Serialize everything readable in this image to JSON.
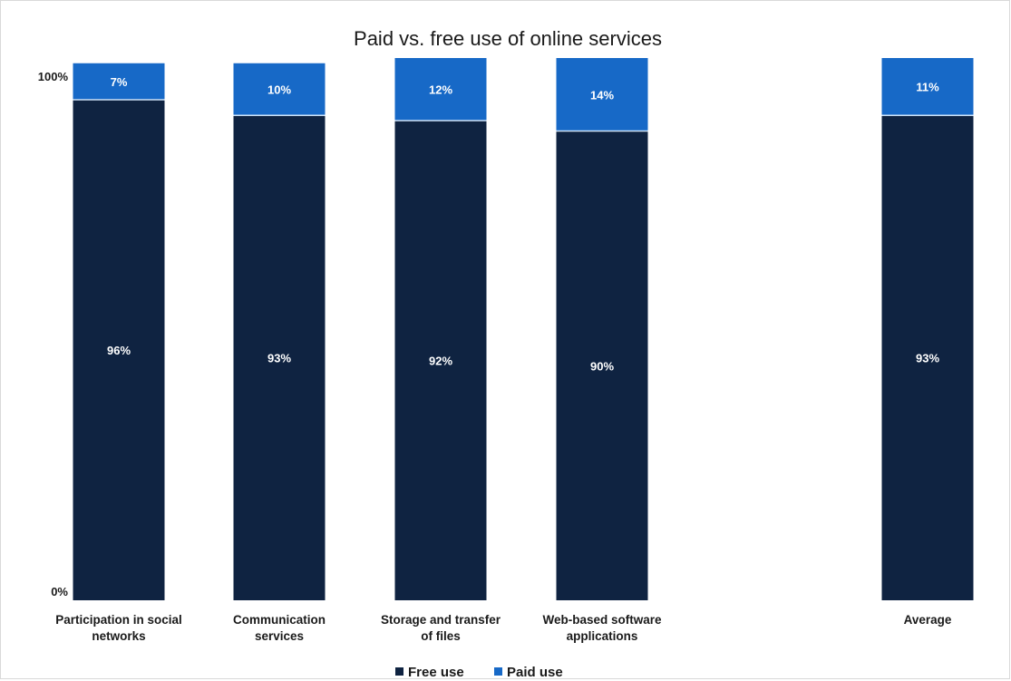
{
  "chart_data": {
    "type": "bar",
    "stacked": true,
    "title": "Paid vs. free use of online services",
    "categories": [
      [
        "Participation in social",
        "networks"
      ],
      [
        "Communication",
        "services"
      ],
      [
        "Storage and transfer",
        "of files"
      ],
      [
        "Web-based software",
        "applications"
      ],
      [
        "Average"
      ]
    ],
    "series": [
      {
        "name": "Free use",
        "color": "#0f2341",
        "values": [
          96,
          93,
          92,
          90,
          93
        ],
        "labels": [
          "96%",
          "93%",
          "92%",
          "90%",
          "93%"
        ]
      },
      {
        "name": "Paid use",
        "color": "#1769c7",
        "values": [
          7,
          10,
          12,
          14,
          11
        ],
        "labels": [
          "7%",
          "10%",
          "12%",
          "14%",
          "11%"
        ]
      }
    ],
    "yaxis": {
      "range": [
        0,
        100
      ],
      "tick_labels": [
        "0%",
        "100%"
      ]
    },
    "legend": {
      "placement": "bottom"
    },
    "grid": false
  }
}
